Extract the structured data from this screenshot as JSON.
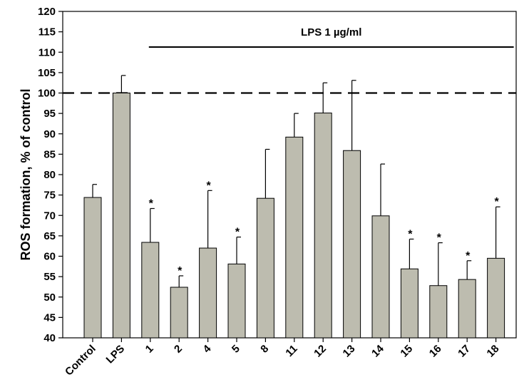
{
  "chart_data": {
    "type": "bar",
    "title": "",
    "xlabel": "",
    "ylabel": "ROS formation, % of control",
    "ylim": [
      40,
      120
    ],
    "y_ticks": [
      40,
      45,
      50,
      55,
      60,
      65,
      70,
      75,
      80,
      85,
      90,
      95,
      100,
      105,
      110,
      115,
      120
    ],
    "categories": [
      "Control",
      "LPS",
      "1",
      "2",
      "4",
      "5",
      "8",
      "11",
      "12",
      "13",
      "14",
      "15",
      "16",
      "17",
      "18"
    ],
    "values": [
      74.4,
      100,
      63.4,
      52.4,
      62.0,
      58.1,
      74.2,
      89.2,
      95.1,
      85.9,
      69.9,
      56.9,
      52.8,
      54.3,
      59.5
    ],
    "errors": [
      3.2,
      4.3,
      8.3,
      2.8,
      14.1,
      6.6,
      12.0,
      5.8,
      7.4,
      17.2,
      12.7,
      7.3,
      10.5,
      4.6,
      12.6
    ],
    "significant": [
      false,
      false,
      true,
      true,
      true,
      true,
      false,
      false,
      false,
      false,
      false,
      true,
      true,
      true,
      true
    ],
    "significance_marker": "*",
    "reference_line": {
      "value": 100,
      "style": "dashed"
    },
    "annotation": {
      "text": "LPS 1 µg/ml",
      "from_category": "1",
      "to_category": "18"
    },
    "bar_color": "#bdbcaf",
    "grid": false,
    "legend": null
  }
}
